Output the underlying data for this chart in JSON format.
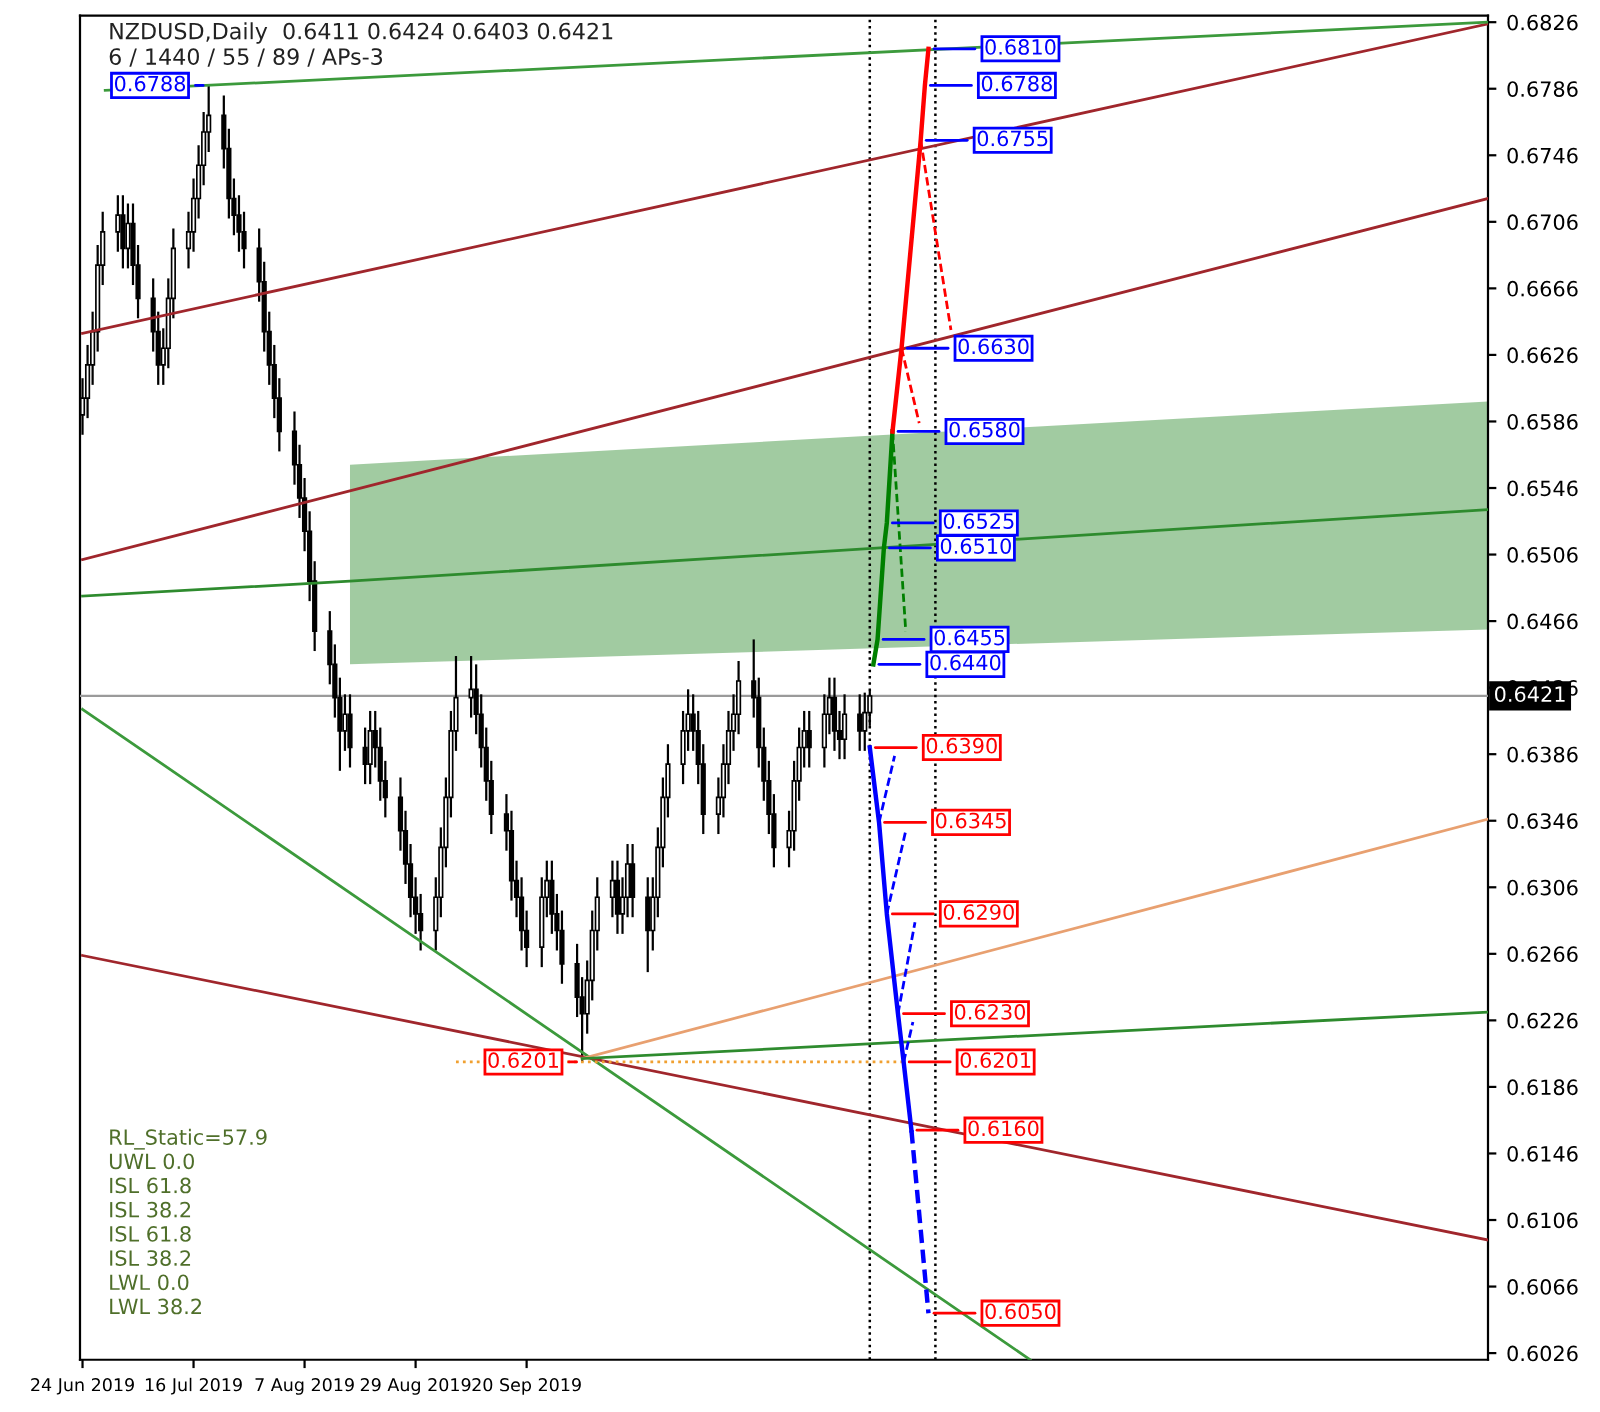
{
  "chart_data": {
    "type": "candlestick",
    "title": "NZDUSD,Daily  0.6411 0.6424 0.6403 0.6421",
    "subtitle": "6 / 1440 / 55 / 89 / APs-3",
    "x": [
      "2019-06-24",
      "2019-06-25",
      "2019-06-26",
      "2019-06-27",
      "2019-06-28",
      "2019-07-01",
      "2019-07-02",
      "2019-07-03",
      "2019-07-04",
      "2019-07-05",
      "2019-07-08",
      "2019-07-09",
      "2019-07-10",
      "2019-07-11",
      "2019-07-12",
      "2019-07-15",
      "2019-07-16",
      "2019-07-17",
      "2019-07-18",
      "2019-07-19",
      "2019-07-22",
      "2019-07-23",
      "2019-07-24",
      "2019-07-25",
      "2019-07-26",
      "2019-07-29",
      "2019-07-30",
      "2019-07-31",
      "2019-08-01",
      "2019-08-02",
      "2019-08-05",
      "2019-08-06",
      "2019-08-07",
      "2019-08-08",
      "2019-08-09",
      "2019-08-12",
      "2019-08-13",
      "2019-08-14",
      "2019-08-15",
      "2019-08-16",
      "2019-08-19",
      "2019-08-20",
      "2019-08-21",
      "2019-08-22",
      "2019-08-23",
      "2019-08-26",
      "2019-08-27",
      "2019-08-28",
      "2019-08-29",
      "2019-08-30",
      "2019-09-02",
      "2019-09-03",
      "2019-09-04",
      "2019-09-05",
      "2019-09-06",
      "2019-09-09",
      "2019-09-10",
      "2019-09-11",
      "2019-09-12",
      "2019-09-13",
      "2019-09-16",
      "2019-09-17",
      "2019-09-18",
      "2019-09-19",
      "2019-09-20",
      "2019-09-23",
      "2019-09-24",
      "2019-09-25",
      "2019-09-26",
      "2019-09-27",
      "2019-09-30",
      "2019-10-01",
      "2019-10-02",
      "2019-10-03",
      "2019-10-04",
      "2019-10-07",
      "2019-10-08",
      "2019-10-09",
      "2019-10-10",
      "2019-10-11",
      "2019-10-14",
      "2019-10-15",
      "2019-10-16",
      "2019-10-17",
      "2019-10-18",
      "2019-10-21",
      "2019-10-22",
      "2019-10-23",
      "2019-10-24",
      "2019-10-25",
      "2019-10-28",
      "2019-10-29",
      "2019-10-30",
      "2019-10-31",
      "2019-11-01",
      "2019-11-04",
      "2019-11-05",
      "2019-11-06",
      "2019-11-07",
      "2019-11-08",
      "2019-11-11",
      "2019-11-12",
      "2019-11-13",
      "2019-11-14",
      "2019-11-15",
      "2019-11-18",
      "2019-11-19",
      "2019-11-20",
      "2019-11-21",
      "2019-11-22",
      "2019-11-25",
      "2019-11-26",
      "2019-11-27"
    ],
    "ohlc": [
      [
        0.659,
        0.6612,
        0.6578,
        0.66
      ],
      [
        0.66,
        0.6632,
        0.6588,
        0.662
      ],
      [
        0.662,
        0.6652,
        0.6608,
        0.664
      ],
      [
        0.664,
        0.6692,
        0.6628,
        0.668
      ],
      [
        0.668,
        0.6712,
        0.6668,
        0.67
      ],
      [
        0.67,
        0.6722,
        0.6688,
        0.671
      ],
      [
        0.671,
        0.6722,
        0.6678,
        0.669
      ],
      [
        0.669,
        0.6717,
        0.6678,
        0.6705
      ],
      [
        0.6705,
        0.6717,
        0.6668,
        0.668
      ],
      [
        0.668,
        0.6692,
        0.6648,
        0.666
      ],
      [
        0.666,
        0.6672,
        0.6628,
        0.664
      ],
      [
        0.664,
        0.6652,
        0.6608,
        0.662
      ],
      [
        0.662,
        0.6642,
        0.6608,
        0.663
      ],
      [
        0.663,
        0.6672,
        0.6618,
        0.666
      ],
      [
        0.666,
        0.6702,
        0.6648,
        0.669
      ],
      [
        0.669,
        0.6712,
        0.6678,
        0.67
      ],
      [
        0.67,
        0.6732,
        0.6688,
        0.672
      ],
      [
        0.672,
        0.6752,
        0.6708,
        0.674
      ],
      [
        0.674,
        0.6772,
        0.6728,
        0.676
      ],
      [
        0.676,
        0.6788,
        0.6748,
        0.677
      ],
      [
        0.677,
        0.6782,
        0.6738,
        0.675
      ],
      [
        0.675,
        0.6762,
        0.6708,
        0.672
      ],
      [
        0.672,
        0.6732,
        0.6698,
        0.671
      ],
      [
        0.671,
        0.6722,
        0.6688,
        0.67
      ],
      [
        0.67,
        0.6712,
        0.6678,
        0.669
      ],
      [
        0.669,
        0.6702,
        0.6658,
        0.667
      ],
      [
        0.667,
        0.6682,
        0.6628,
        0.664
      ],
      [
        0.664,
        0.6652,
        0.6608,
        0.662
      ],
      [
        0.662,
        0.6632,
        0.6588,
        0.66
      ],
      [
        0.66,
        0.6612,
        0.6568,
        0.658
      ],
      [
        0.658,
        0.6592,
        0.6548,
        0.656
      ],
      [
        0.656,
        0.6572,
        0.6528,
        0.654
      ],
      [
        0.654,
        0.6552,
        0.6508,
        0.652
      ],
      [
        0.652,
        0.6532,
        0.6478,
        0.649
      ],
      [
        0.649,
        0.6502,
        0.6448,
        0.646
      ],
      [
        0.646,
        0.6472,
        0.6428,
        0.644
      ],
      [
        0.644,
        0.6452,
        0.6408,
        0.642
      ],
      [
        0.642,
        0.6432,
        0.6376,
        0.64
      ],
      [
        0.64,
        0.6422,
        0.6388,
        0.641
      ],
      [
        0.641,
        0.6422,
        0.6378,
        0.639
      ],
      [
        0.639,
        0.6402,
        0.6368,
        0.638
      ],
      [
        0.638,
        0.6412,
        0.6368,
        0.64
      ],
      [
        0.64,
        0.6412,
        0.6378,
        0.639
      ],
      [
        0.639,
        0.6402,
        0.6358,
        0.637
      ],
      [
        0.637,
        0.6382,
        0.6348,
        0.636
      ],
      [
        0.636,
        0.6372,
        0.6328,
        0.634
      ],
      [
        0.634,
        0.6352,
        0.6308,
        0.632
      ],
      [
        0.632,
        0.6332,
        0.6288,
        0.63
      ],
      [
        0.63,
        0.6312,
        0.6278,
        0.629
      ],
      [
        0.629,
        0.6302,
        0.6268,
        0.628
      ],
      [
        0.628,
        0.6312,
        0.6268,
        0.63
      ],
      [
        0.63,
        0.6342,
        0.6288,
        0.633
      ],
      [
        0.633,
        0.6372,
        0.6318,
        0.636
      ],
      [
        0.636,
        0.6412,
        0.6348,
        0.64
      ],
      [
        0.64,
        0.6445,
        0.6388,
        0.642
      ],
      [
        0.642,
        0.6445,
        0.6408,
        0.6425
      ],
      [
        0.6425,
        0.644,
        0.6398,
        0.641
      ],
      [
        0.641,
        0.6422,
        0.6378,
        0.639
      ],
      [
        0.639,
        0.6402,
        0.6358,
        0.637
      ],
      [
        0.637,
        0.6382,
        0.6338,
        0.635
      ],
      [
        0.635,
        0.6362,
        0.6328,
        0.634
      ],
      [
        0.634,
        0.6352,
        0.6298,
        0.631
      ],
      [
        0.631,
        0.6322,
        0.6288,
        0.63
      ],
      [
        0.63,
        0.6312,
        0.6268,
        0.628
      ],
      [
        0.628,
        0.6292,
        0.6258,
        0.627
      ],
      [
        0.627,
        0.6312,
        0.6258,
        0.63
      ],
      [
        0.63,
        0.6322,
        0.6288,
        0.631
      ],
      [
        0.631,
        0.6322,
        0.6278,
        0.629
      ],
      [
        0.629,
        0.6302,
        0.6268,
        0.628
      ],
      [
        0.628,
        0.6292,
        0.6248,
        0.626
      ],
      [
        0.626,
        0.6272,
        0.6228,
        0.624
      ],
      [
        0.624,
        0.6252,
        0.6201,
        0.623
      ],
      [
        0.623,
        0.6262,
        0.6218,
        0.625
      ],
      [
        0.625,
        0.6292,
        0.6238,
        0.628
      ],
      [
        0.628,
        0.6312,
        0.6268,
        0.63
      ],
      [
        0.63,
        0.6322,
        0.6288,
        0.631
      ],
      [
        0.631,
        0.6322,
        0.6278,
        0.629
      ],
      [
        0.629,
        0.6312,
        0.6278,
        0.63
      ],
      [
        0.63,
        0.6332,
        0.6288,
        0.632
      ],
      [
        0.632,
        0.6332,
        0.6288,
        0.63
      ],
      [
        0.63,
        0.6312,
        0.6255,
        0.628
      ],
      [
        0.628,
        0.6312,
        0.6268,
        0.63
      ],
      [
        0.63,
        0.6342,
        0.6288,
        0.633
      ],
      [
        0.633,
        0.6372,
        0.6318,
        0.636
      ],
      [
        0.636,
        0.6392,
        0.6348,
        0.638
      ],
      [
        0.638,
        0.6412,
        0.6368,
        0.64
      ],
      [
        0.64,
        0.6425,
        0.6388,
        0.641
      ],
      [
        0.641,
        0.6422,
        0.6388,
        0.64
      ],
      [
        0.64,
        0.6412,
        0.6368,
        0.638
      ],
      [
        0.638,
        0.6392,
        0.6338,
        0.635
      ],
      [
        0.635,
        0.6372,
        0.6338,
        0.636
      ],
      [
        0.636,
        0.6392,
        0.6348,
        0.638
      ],
      [
        0.638,
        0.6412,
        0.6368,
        0.64
      ],
      [
        0.64,
        0.6422,
        0.6388,
        0.641
      ],
      [
        0.641,
        0.6442,
        0.6398,
        0.643
      ],
      [
        0.643,
        0.6455,
        0.6408,
        0.642
      ],
      [
        0.642,
        0.6432,
        0.6378,
        0.639
      ],
      [
        0.639,
        0.6402,
        0.6358,
        0.637
      ],
      [
        0.637,
        0.6382,
        0.6338,
        0.635
      ],
      [
        0.635,
        0.6362,
        0.6318,
        0.633
      ],
      [
        0.633,
        0.6352,
        0.6318,
        0.634
      ],
      [
        0.634,
        0.6382,
        0.6328,
        0.637
      ],
      [
        0.637,
        0.6402,
        0.6358,
        0.639
      ],
      [
        0.639,
        0.6412,
        0.6378,
        0.64
      ],
      [
        0.64,
        0.6412,
        0.6378,
        0.639
      ],
      [
        0.639,
        0.6422,
        0.6378,
        0.641
      ],
      [
        0.641,
        0.6432,
        0.6398,
        0.642
      ],
      [
        0.642,
        0.6432,
        0.6388,
        0.64
      ],
      [
        0.64,
        0.6412,
        0.6383,
        0.6395
      ],
      [
        0.6395,
        0.6422,
        0.6383,
        0.641
      ],
      [
        0.641,
        0.6422,
        0.6388,
        0.64
      ],
      [
        0.64,
        0.6423,
        0.6388,
        0.6411
      ],
      [
        0.6411,
        0.6424,
        0.6403,
        0.6421
      ]
    ],
    "series": [
      {
        "type": "line",
        "color": "#2e8b2e",
        "line_style": "solid",
        "x": [
          "2019-06-24",
          "2019-08-16",
          "2020-03-28T12:00"
        ],
        "values": [
          0.6481,
          0.649,
          0.6533
        ],
        "lower": [
          null,
          0.644,
          0.6461
        ],
        "upper": [
          null,
          0.656,
          0.6598
        ]
      },
      {
        "type": "line",
        "color": "#3c9a3c",
        "line_style": "solid",
        "x": [
          "2019-06-24",
          "2019-12-28T19:00"
        ],
        "values": [
          0.6413,
          0.6022
        ]
      },
      {
        "type": "line",
        "color": "#a0262c",
        "line_style": "solid",
        "x": [
          "2019-06-24",
          "2020-03-28T12:00"
        ],
        "values": [
          0.6265,
          0.6094
        ]
      },
      {
        "type": "line",
        "color": "#e8a070",
        "line_style": "solid",
        "x": [
          "2019-10-01",
          "2020-03-28T12:00"
        ],
        "values": [
          0.6203,
          0.6347
        ]
      },
      {
        "type": "line",
        "color": "#2e8b2e",
        "line_style": "solid",
        "x": [
          "2019-10-01",
          "2020-03-28T12:00"
        ],
        "values": [
          0.6203,
          0.6231
        ]
      },
      {
        "type": "line",
        "color": "#a0262c",
        "line_style": "solid",
        "x": [
          "2019-06-24",
          "2020-03-28T12:00"
        ],
        "values": [
          0.6639,
          0.6825
        ]
      },
      {
        "type": "line",
        "color": "#a0262c",
        "line_style": "solid",
        "x": [
          "2019-06-24",
          "2020-03-28T12:00"
        ],
        "values": [
          0.6503,
          0.672
        ]
      },
      {
        "type": "line",
        "color": "#3c9a3c",
        "line_style": "solid",
        "x": [
          "2019-06-28T12:00",
          "2020-03-28T12:00"
        ],
        "values": [
          0.6785,
          0.6826
        ]
      },
      {
        "type": "line",
        "color": "#f0a030",
        "line_style": "dotted",
        "x": [
          "2019-09-06",
          "2019-12-03T17:00"
        ],
        "values": [
          0.6201,
          0.6201
        ]
      },
      {
        "type": "line",
        "color": "#0000ff",
        "line_style": "solid",
        "x": [
          "2019-11-27",
          "2019-11-28T20:00",
          "2019-11-30T09:00",
          "2019-12-02T14:00",
          "2019-12-03T17:00",
          "2019-12-05T06:00"
        ],
        "values": [
          0.639,
          0.6345,
          0.629,
          0.623,
          0.6201,
          0.616
        ],
        "value_labels": [
          "0.6390",
          "0.6345",
          "0.6290",
          "0.6230",
          "0.6201",
          "0.6160"
        ]
      },
      {
        "type": "line",
        "color": "#0000ff",
        "line_style": "dashed",
        "x": [
          "2019-11-28T20:00",
          "2019-12-01T22:00"
        ],
        "values": [
          0.6345,
          0.6385
        ]
      },
      {
        "type": "line",
        "color": "#0000ff",
        "line_style": "dashed",
        "x": [
          "2019-11-30T09:00",
          "2019-12-04T03:00"
        ],
        "values": [
          0.629,
          0.634
        ]
      },
      {
        "type": "line",
        "color": "#0000ff",
        "line_style": "dashed",
        "x": [
          "2019-12-02T14:00",
          "2019-12-05T23:00"
        ],
        "values": [
          0.623,
          0.6285
        ]
      },
      {
        "type": "line",
        "color": "#0000ff",
        "line_style": "dashed",
        "x": [
          "2019-12-03T17:00",
          "2019-12-05T13:00"
        ],
        "values": [
          0.6201,
          0.6225
        ]
      },
      {
        "type": "line",
        "color": "#0000ff",
        "line_style": "dashed",
        "x": [
          "2019-12-05T06:00",
          "2019-12-08T15:00"
        ],
        "values": [
          0.616,
          0.605
        ],
        "value_labels": [
          null,
          "0.6050"
        ]
      },
      {
        "type": "line",
        "color": "#008000",
        "line_style": "solid",
        "x": [
          "2019-11-27T17:00",
          "2019-11-28T13:00",
          "2019-11-29T19:00",
          "2019-11-30T09:00",
          "2019-12-01T12:00"
        ],
        "values": [
          0.644,
          0.6455,
          0.651,
          0.6525,
          0.658
        ],
        "value_labels": [
          "0.6440",
          "0.6455",
          "0.6510",
          "0.6525",
          "0.6580"
        ]
      },
      {
        "type": "line",
        "color": "#008000",
        "line_style": "dashed",
        "x": [
          "2019-12-01T12:00",
          "2019-12-04T03:00"
        ],
        "values": [
          0.658,
          0.646
        ]
      },
      {
        "type": "line",
        "color": "#ff0000",
        "line_style": "solid",
        "x": [
          "2019-12-01T12:00",
          "2019-12-03T07:00",
          "2019-12-07T02:00",
          "2019-12-07T22:00",
          "2019-12-08T15:00"
        ],
        "values": [
          0.658,
          0.663,
          0.6755,
          0.6788,
          0.681
        ],
        "value_labels": [
          null,
          "0.6630",
          "0.6755",
          "0.6788",
          "0.6810"
        ]
      },
      {
        "type": "line",
        "color": "#ff0000",
        "line_style": "dashed",
        "x": [
          "2019-12-03T07:00",
          "2019-12-06T19:00"
        ],
        "values": [
          0.663,
          0.6585
        ]
      },
      {
        "type": "line",
        "color": "#ff0000",
        "line_style": "dashed",
        "x": [
          "2019-12-07T02:00",
          "2019-12-13T02:00"
        ],
        "values": [
          0.6755,
          0.6641
        ]
      }
    ],
    "ref_lines": [
      {
        "axis": "y",
        "value": 0.6421,
        "label": "0.6421",
        "color": "#9a9a9a",
        "line_style": "solid"
      },
      {
        "axis": "x",
        "value": "2019-11-27",
        "color": "#000000",
        "line_style": "dotted"
      },
      {
        "axis": "x",
        "value": "2019-12-10",
        "color": "#000000",
        "line_style": "dotted"
      }
    ],
    "annotations": [
      "RL_Static=57.9",
      "UWL 0.0",
      "ISL 61.8",
      "ISL 38.2",
      "ISL 61.8",
      "ISL 38.2",
      "LWL 0.0",
      "LWL 38.2",
      {
        "text": "0.6788",
        "x": "2019-07-19",
        "y": 0.6788
      },
      {
        "text": "0.6201",
        "x": "2019-10-01",
        "y": 0.6201
      }
    ],
    "xlim": [
      "2019-06-23T12:00",
      "2020-03-28T12:00"
    ],
    "ylim": [
      0.6022,
      0.683
    ],
    "xticks": [
      {
        "value": "2019-06-24",
        "label": "24 Jun 2019"
      },
      {
        "value": "2019-07-16",
        "label": "16 Jul 2019"
      },
      {
        "value": "2019-08-07",
        "label": "7 Aug 2019"
      },
      {
        "value": "2019-08-29",
        "label": "29 Aug 2019"
      },
      {
        "value": "2019-09-20",
        "label": "20 Sep 2019"
      }
    ],
    "yticks": [
      0.6826,
      0.6786,
      0.6746,
      0.6706,
      0.6666,
      0.6626,
      0.6586,
      0.6546,
      0.6506,
      0.6466,
      0.6426,
      0.6386,
      0.6346,
      0.6306,
      0.6266,
      0.6226,
      0.6186,
      0.6146,
      0.6106,
      0.6066,
      0.6026
    ],
    "grid": false
  }
}
